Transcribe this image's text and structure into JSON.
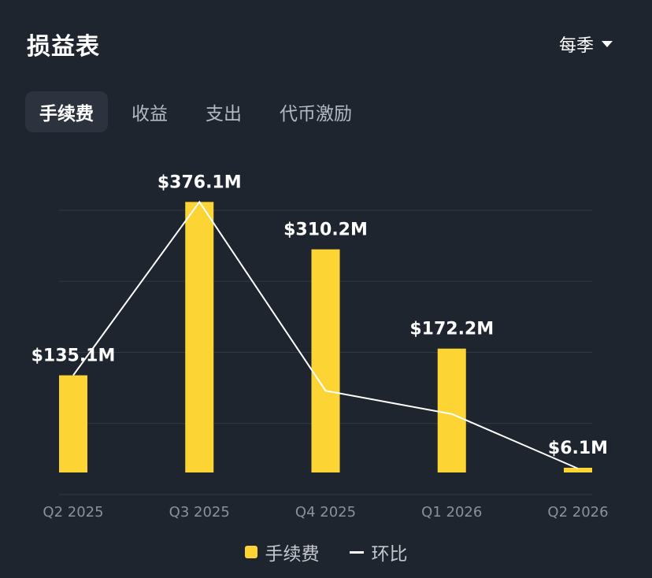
{
  "header": {
    "title": "损益表",
    "period_label": "每季"
  },
  "tabs": [
    {
      "label": "手续费",
      "active": true
    },
    {
      "label": "收益",
      "active": false
    },
    {
      "label": "支出",
      "active": false
    },
    {
      "label": "代币激励",
      "active": false
    }
  ],
  "chart_data": {
    "type": "bar",
    "categories": [
      "Q2 2025",
      "Q3 2025",
      "Q4 2025",
      "Q1 2026",
      "Q2 2026"
    ],
    "series": [
      {
        "name": "手续费",
        "values": [
          135.1,
          376.1,
          310.2,
          172.2,
          6.1
        ],
        "color": "#fcd535"
      }
    ],
    "data_labels": [
      "$135.1M",
      "$376.1M",
      "$310.2M",
      "$172.2M",
      "$6.1M"
    ],
    "line_series": {
      "name": "环比",
      "color": "#ffffff",
      "values": [
        135.1,
        376.1,
        113.6,
        81.3,
        6.1
      ]
    },
    "ylim": [
      0,
      416
    ],
    "grid": true,
    "legend_position": "bottom-center"
  },
  "legend": [
    {
      "label": "手续费",
      "kind": "bar",
      "color": "#fcd535"
    },
    {
      "label": "环比",
      "kind": "line",
      "color": "#ffffff"
    }
  ]
}
